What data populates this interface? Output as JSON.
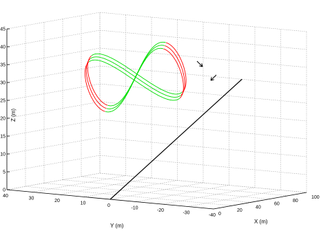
{
  "chart_data": {
    "type": "line",
    "projection": "3d",
    "title": "",
    "xlabel": "X (m)",
    "ylabel": "Y (m)",
    "zlabel": "Z (m)",
    "xlim": [
      0,
      100
    ],
    "ylim": [
      -40,
      40
    ],
    "zlim": [
      0,
      45
    ],
    "xticks": [
      "0",
      "20",
      "40",
      "60",
      "80",
      "100"
    ],
    "yticks": [
      "40",
      "30",
      "20",
      "10",
      "0",
      "-10",
      "-20",
      "-30",
      "-40"
    ],
    "zticks": [
      "0",
      "5",
      "10",
      "15",
      "20",
      "25",
      "30",
      "35",
      "40",
      "45"
    ],
    "grid": true,
    "legend": "none",
    "curve": {
      "shape": "figure-eight",
      "loops": 3,
      "center": {
        "x": 55,
        "y": 10,
        "z": 31
      },
      "x_amplitude": 50,
      "y_amplitude": 22,
      "z_amplitude": 14
    },
    "series": [
      {
        "color": "#ff0000",
        "segment": "trajectory near the ends of the figure-eight"
      },
      {
        "color": "#00dd00",
        "segment": "trajectory through the crossing of the figure-eight"
      },
      {
        "color": "#000000",
        "segment": "straight line",
        "from": {
          "x": 0,
          "y": 0,
          "z": 0
        },
        "to": {
          "x": 100,
          "y": -15,
          "z": 30
        }
      }
    ],
    "annotations": [
      "direction-arrow",
      "direction-arrow"
    ]
  }
}
